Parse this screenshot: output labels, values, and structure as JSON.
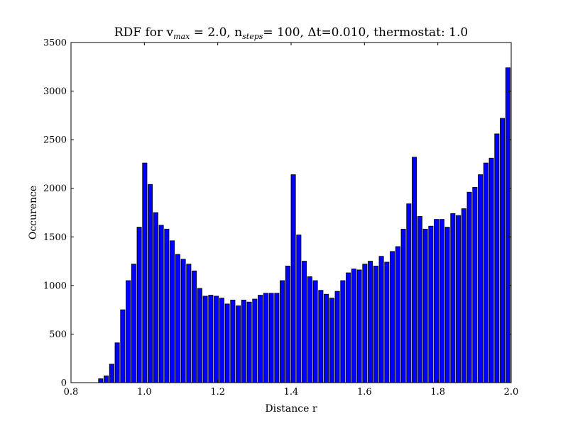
{
  "chart_data": {
    "type": "bar",
    "title": {
      "part1": "RDF for v",
      "sub1": "max",
      "part2": " = 2.0, n",
      "sub2": "steps",
      "part3": "= 100, ",
      "delta_symbol": "Δ",
      "part4": "t=0.010, thermostat: 1.0"
    },
    "xlabel": "Distance r",
    "ylabel": "Occurence",
    "xlim": [
      0.8,
      2.0
    ],
    "ylim": [
      0,
      3500
    ],
    "xticks": [
      0.8,
      1.0,
      1.2,
      1.4,
      1.6,
      1.8,
      2.0
    ],
    "xtick_labels": [
      "0.8",
      "1.0",
      "1.2",
      "1.4",
      "1.6",
      "1.8",
      "2.0"
    ],
    "yticks": [
      0,
      500,
      1000,
      1500,
      2000,
      2500,
      3000,
      3500
    ],
    "ytick_labels": [
      "0",
      "500",
      "1000",
      "1500",
      "2000",
      "2500",
      "3000",
      "3500"
    ],
    "grid": false,
    "bar_color": "#0000ff",
    "edge_color": "#000000",
    "bin_width": 0.015,
    "bar_fill_fraction": 0.8,
    "x": [
      0.8,
      0.815,
      0.83,
      0.845,
      0.86,
      0.875,
      0.89,
      0.905,
      0.92,
      0.935,
      0.95,
      0.965,
      0.98,
      0.995,
      1.01,
      1.025,
      1.04,
      1.055,
      1.07,
      1.085,
      1.1,
      1.115,
      1.13,
      1.145,
      1.16,
      1.175,
      1.19,
      1.205,
      1.22,
      1.235,
      1.25,
      1.265,
      1.28,
      1.295,
      1.31,
      1.325,
      1.34,
      1.355,
      1.37,
      1.385,
      1.4,
      1.415,
      1.43,
      1.445,
      1.46,
      1.475,
      1.49,
      1.505,
      1.52,
      1.535,
      1.55,
      1.565,
      1.58,
      1.595,
      1.61,
      1.625,
      1.64,
      1.655,
      1.67,
      1.685,
      1.7,
      1.715,
      1.73,
      1.745,
      1.76,
      1.775,
      1.79,
      1.805,
      1.82,
      1.835,
      1.85,
      1.865,
      1.88,
      1.895,
      1.91,
      1.925,
      1.94,
      1.955,
      1.97,
      1.985
    ],
    "values": [
      0,
      0,
      0,
      0,
      0,
      40,
      70,
      190,
      410,
      750,
      1050,
      1220,
      1600,
      2260,
      2040,
      1750,
      1620,
      1580,
      1460,
      1320,
      1270,
      1220,
      1150,
      970,
      890,
      900,
      890,
      870,
      810,
      850,
      790,
      850,
      830,
      860,
      900,
      920,
      920,
      920,
      1050,
      1200,
      2140,
      1520,
      1250,
      1090,
      1050,
      950,
      910,
      870,
      940,
      1050,
      1130,
      1170,
      1160,
      1220,
      1250,
      1200,
      1300,
      1240,
      1350,
      1400,
      1580,
      1840,
      2320,
      1710,
      1580,
      1610,
      1680,
      1680,
      1600,
      1740,
      1720,
      1790,
      1960,
      2010,
      2140,
      2260,
      2310,
      2560,
      2720,
      3240
    ]
  }
}
